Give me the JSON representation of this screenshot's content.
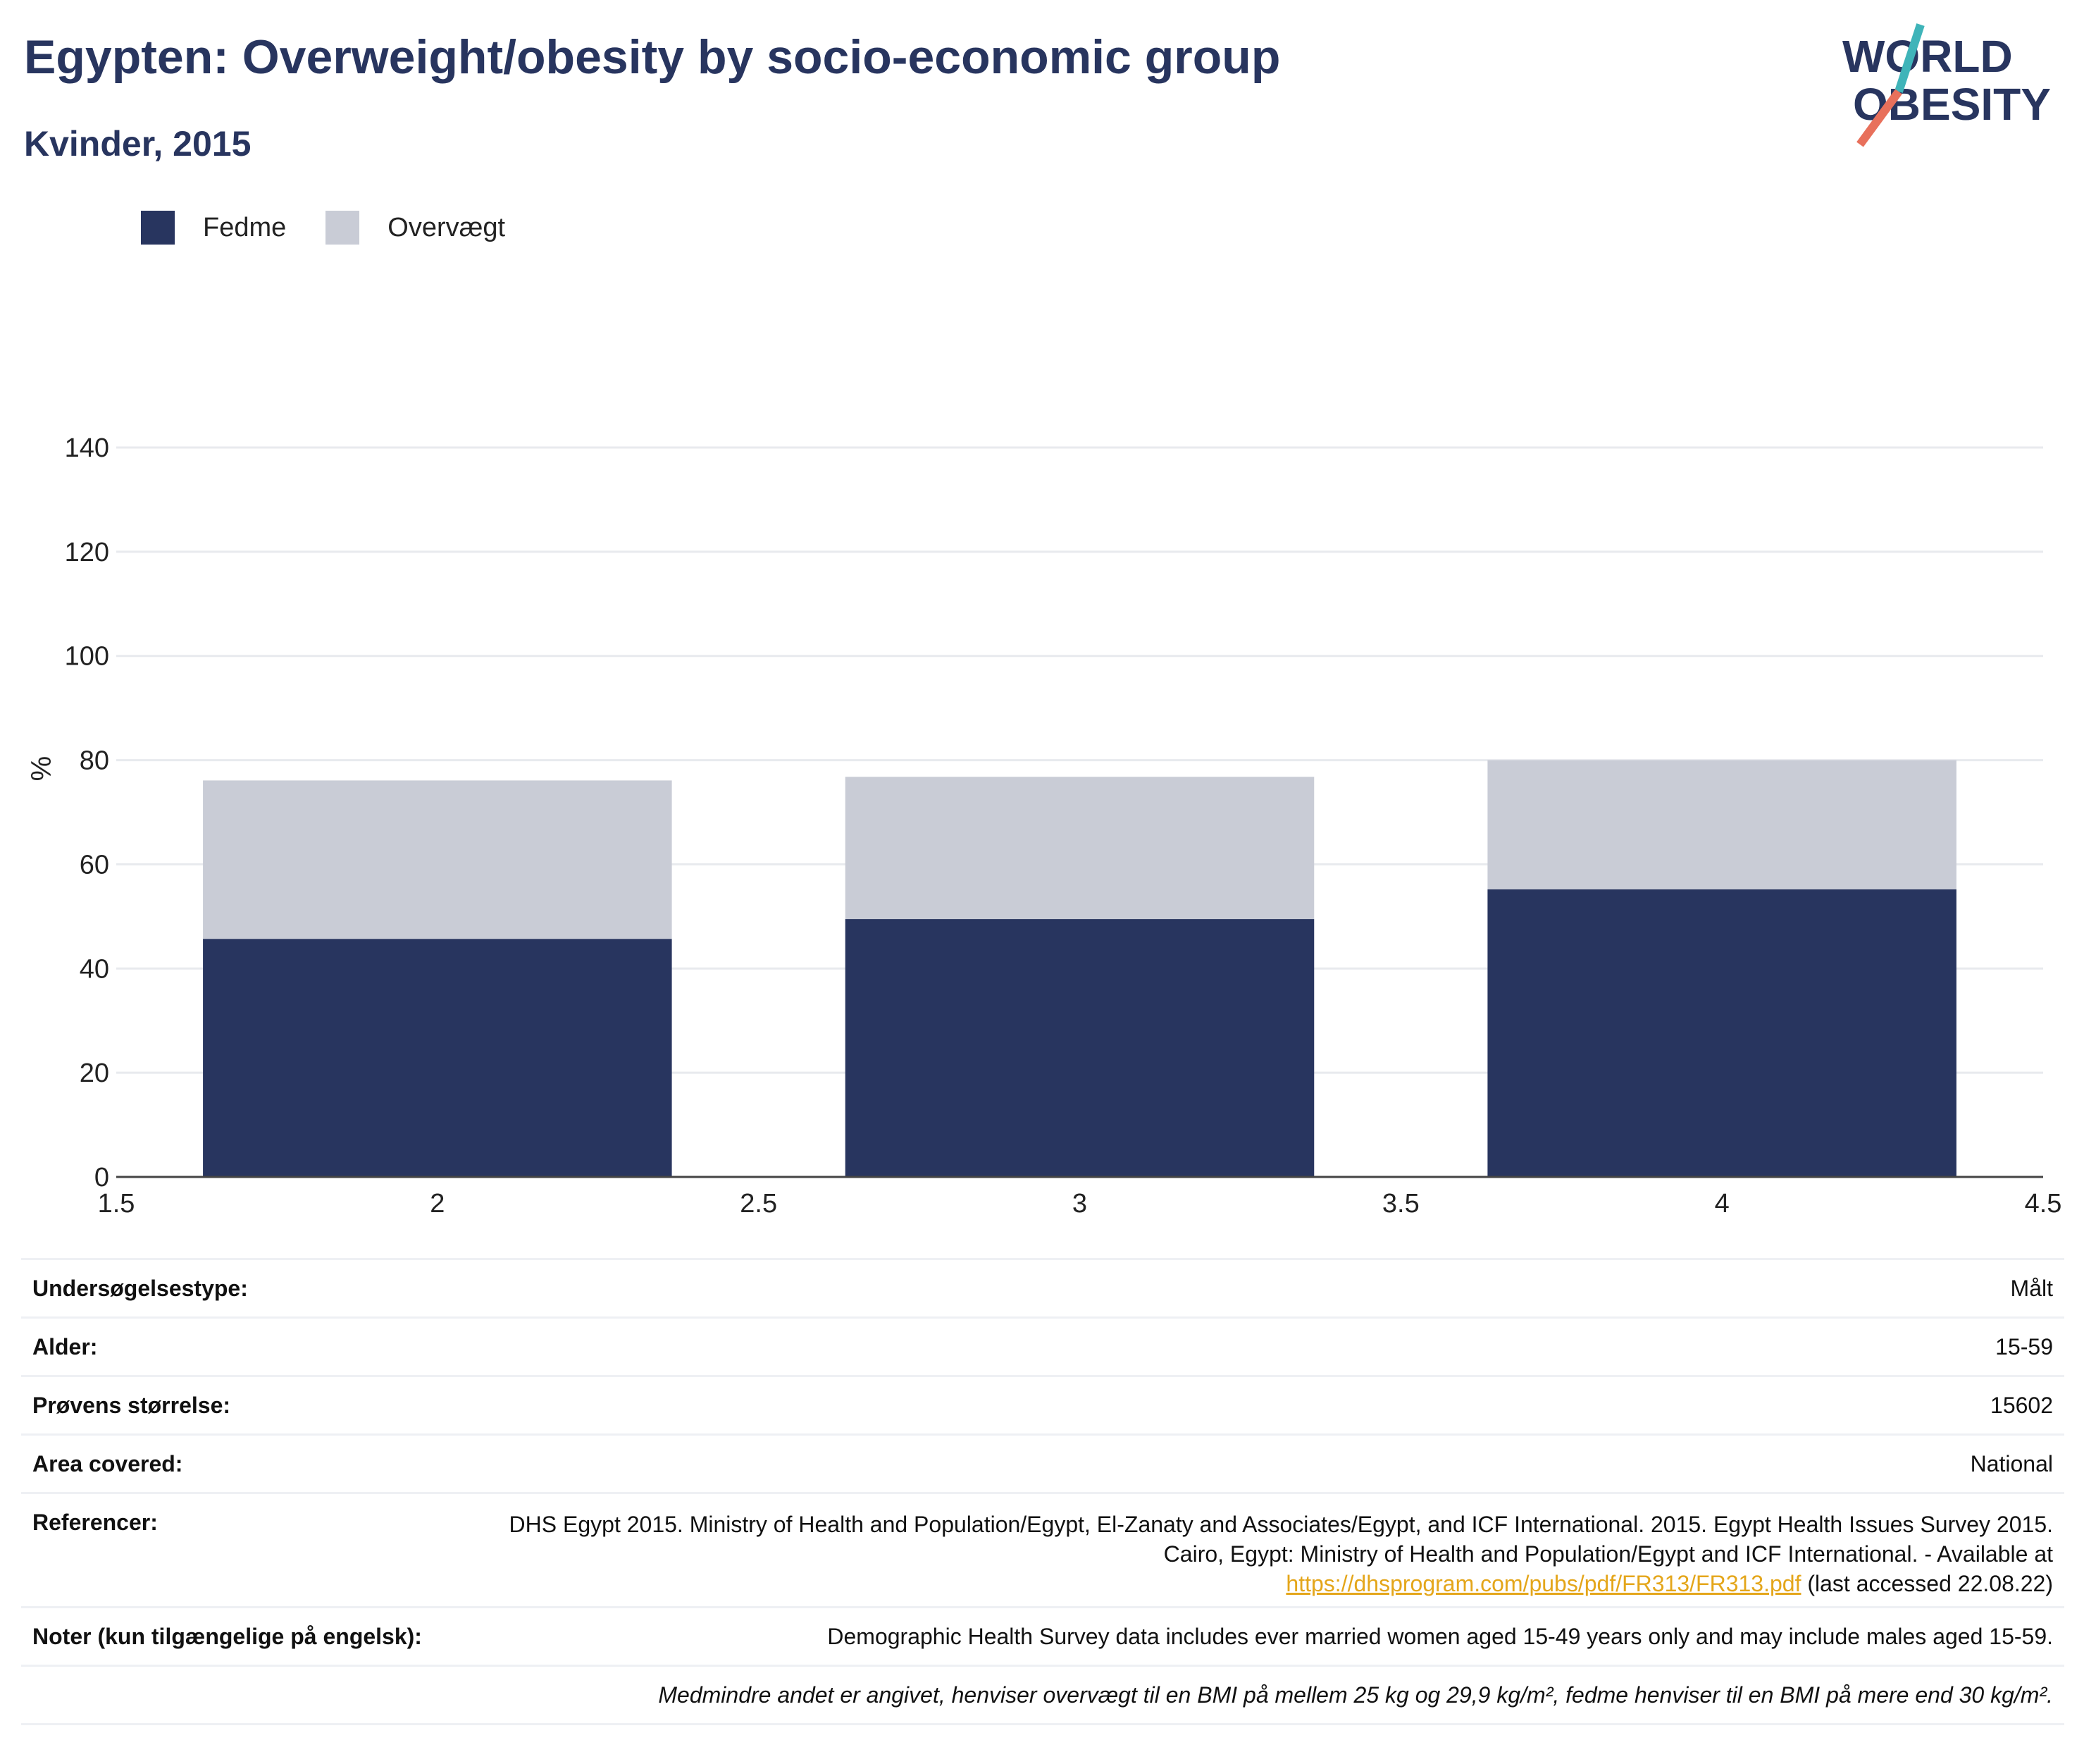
{
  "header": {
    "title": "Egypten: Overweight/obesity by socio-economic group",
    "subtitle": "Kvinder, 2015"
  },
  "logo": {
    "line1": "WORLD",
    "line2": "OBESITY",
    "accent_teal": "#3fb4b9",
    "accent_coral": "#e8705b"
  },
  "legend": [
    {
      "label": "Fedme",
      "color": "#28355f"
    },
    {
      "label": "Overvægt",
      "color": "#c9ccd6"
    }
  ],
  "chart_data": {
    "type": "bar",
    "stacked": true,
    "x": [
      2,
      3,
      4
    ],
    "series": [
      {
        "name": "Fedme",
        "values": [
          45.7,
          49.5,
          55.2
        ],
        "color": "#28355f"
      },
      {
        "name": "Overvægt",
        "values": [
          30.4,
          27.3,
          24.8
        ],
        "color": "#c9ccd6"
      }
    ],
    "xlim": [
      1.5,
      4.5
    ],
    "ylim": [
      0,
      140
    ],
    "xticks": [
      1.5,
      2,
      2.5,
      3,
      3.5,
      4,
      4.5
    ],
    "yticks": [
      0,
      20,
      40,
      60,
      80,
      100,
      120,
      140
    ],
    "ylabel": "%",
    "xlabel": "",
    "grid": true,
    "legend_position": "top-left"
  },
  "info": {
    "survey_type": {
      "label": "Undersøgelsestype:",
      "value": "Målt"
    },
    "age": {
      "label": "Alder:",
      "value": "15-59"
    },
    "sample_size": {
      "label": "Prøvens størrelse:",
      "value": "15602"
    },
    "area": {
      "label": "Area covered:",
      "value": "National"
    },
    "references": {
      "label": "Referencer:",
      "text": "DHS Egypt 2015. Ministry of Health and Population/Egypt, El-Zanaty and Associates/Egypt, and ICF International. 2015. Egypt Health Issues Survey 2015. Cairo, Egypt: Ministry of Health and Population/Egypt and ICF International. - Available at",
      "link": "https://dhsprogram.com/pubs/pdf/FR313/FR313.pdf",
      "suffix": "(last accessed 22.08.22)"
    },
    "notes": {
      "label": "Noter (kun tilgængelige på engelsk):",
      "value": "Demographic Health Survey data includes ever married women aged 15-49 years only and may include males aged 15-59."
    },
    "footnote": "Medmindre andet er angivet, henviser overvægt til en BMI på mellem 25 kg og 29,9 kg/m², fedme henviser til en BMI på mere end 30 kg/m²."
  }
}
